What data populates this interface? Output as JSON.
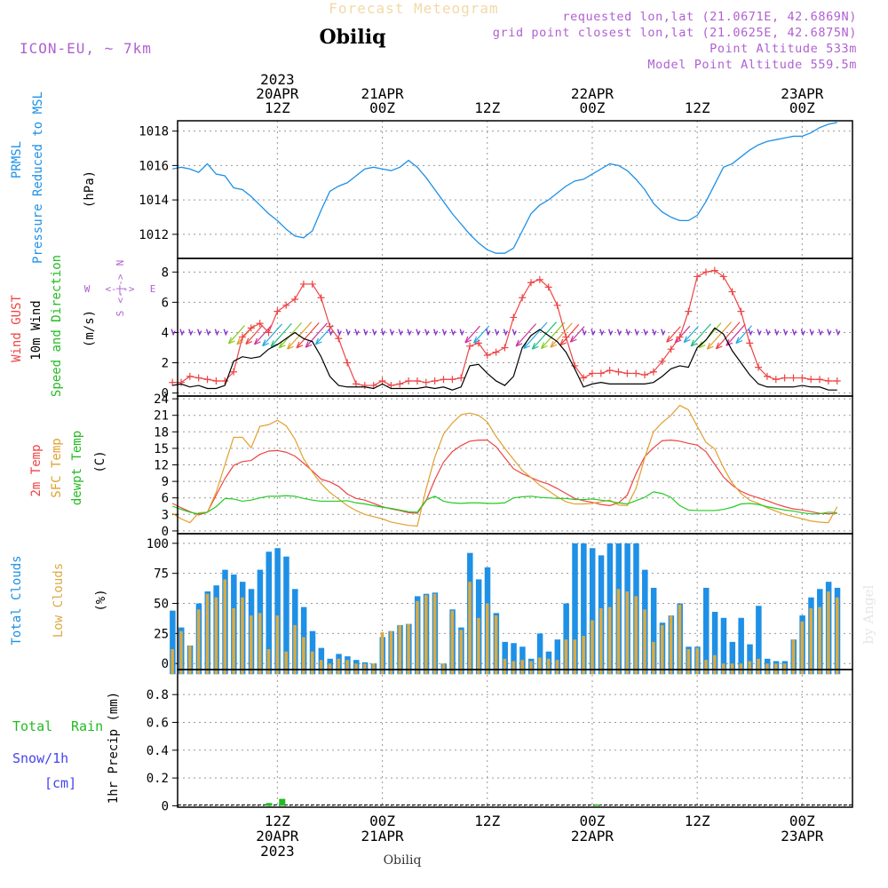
{
  "header": {
    "title": "Forecast Meteogram",
    "location": "Obiliq",
    "model": "ICON-EU, ~ 7km",
    "requested": "requested lon,lat (21.0671E, 42.6869N)",
    "gridpoint": "grid point closest lon,lat (21.0625E, 42.6875N)",
    "point_alt": "Point Altitude 533m",
    "model_alt": "Model Point Altitude 559.5m",
    "footer_location": "Obiliq",
    "watermark": "by Angel"
  },
  "colors": {
    "pressure": "#1e90e6",
    "gust": "#ee4444",
    "wind": "#000000",
    "temp2m": "#ee4444",
    "sfc": "#e0a030",
    "dewpt": "#22cc22",
    "total_clouds": "#1e90e6",
    "low_clouds": "#d9aa44",
    "rain": "#22bb22",
    "snow": "#4444ee",
    "purple": "#b060d0"
  },
  "time_axis": {
    "top_labels": [
      {
        "h": 12,
        "lines": [
          "2023",
          "20APR",
          "12Z"
        ]
      },
      {
        "h": 24,
        "lines": [
          "21APR",
          "00Z"
        ]
      },
      {
        "h": 36,
        "lines": [
          "12Z"
        ]
      },
      {
        "h": 48,
        "lines": [
          "22APR",
          "00Z"
        ]
      },
      {
        "h": 60,
        "lines": [
          "12Z"
        ]
      },
      {
        "h": 72,
        "lines": [
          "23APR",
          "00Z"
        ]
      }
    ],
    "bottom_labels": [
      {
        "h": 12,
        "lines": [
          "12Z",
          "20APR",
          "2023"
        ]
      },
      {
        "h": 24,
        "lines": [
          "00Z",
          "21APR"
        ]
      },
      {
        "h": 36,
        "lines": [
          "12Z"
        ]
      },
      {
        "h": 48,
        "lines": [
          "00Z",
          "22APR"
        ]
      },
      {
        "h": 60,
        "lines": [
          "12Z"
        ]
      },
      {
        "h": 72,
        "lines": [
          "00Z",
          "23APR"
        ]
      }
    ]
  },
  "panel_labels": {
    "pressure": [
      "PRMSL",
      "Pressure Reduced to MSL",
      "(hPa)"
    ],
    "wind": [
      "Wind GUST",
      "10m Wind",
      "Speed and Direction",
      "(m/s)"
    ],
    "compass": {
      "n": "N",
      "s": "S",
      "w": "W",
      "e": "E",
      "arrows": "<-|->"
    },
    "temp": [
      "2m Temp",
      "SFC Temp",
      "dewpt Temp",
      "(C)"
    ],
    "clouds": [
      "Total Clouds",
      "Low Clouds",
      "(%)"
    ],
    "precip": [
      "Total",
      "Rain",
      "Snow/1h",
      "[cm]",
      "1hr Precip (mm)"
    ]
  },
  "chart_data": [
    {
      "type": "line",
      "name": "pressure",
      "ylabel": "(hPa)",
      "ylim": [
        1010.6,
        1018.6
      ],
      "yticks": [
        1012,
        1014,
        1016,
        1018
      ],
      "x_hours": [
        0,
        1,
        2,
        3,
        4,
        5,
        6,
        7,
        8,
        9,
        10,
        11,
        12,
        13,
        14,
        15,
        16,
        17,
        18,
        19,
        20,
        21,
        22,
        23,
        24,
        25,
        26,
        27,
        28,
        29,
        30,
        31,
        32,
        33,
        34,
        35,
        36,
        37,
        38,
        39,
        40,
        41,
        42,
        43,
        44,
        45,
        46,
        47,
        48,
        49,
        50,
        51,
        52,
        53,
        54,
        55,
        56,
        57,
        58,
        59,
        60,
        61,
        62,
        63,
        64,
        65,
        66,
        67,
        68,
        69,
        70,
        71,
        72,
        73,
        74,
        75,
        76
      ],
      "series": [
        {
          "name": "PRMSL",
          "values": [
            1015.8,
            1015.9,
            1015.8,
            1015.6,
            1016.1,
            1015.5,
            1015.4,
            1014.7,
            1014.6,
            1014.2,
            1013.7,
            1013.2,
            1012.8,
            1012.3,
            1011.9,
            1011.8,
            1012.2,
            1013.4,
            1014.5,
            1014.8,
            1015.0,
            1015.4,
            1015.8,
            1015.9,
            1015.8,
            1015.7,
            1015.9,
            1016.3,
            1015.9,
            1015.3,
            1014.6,
            1013.9,
            1013.2,
            1012.6,
            1012.0,
            1011.5,
            1011.1,
            1010.9,
            1010.9,
            1011.2,
            1012.2,
            1013.2,
            1013.7,
            1014.0,
            1014.4,
            1014.8,
            1015.1,
            1015.2,
            1015.5,
            1015.8,
            1016.1,
            1016.0,
            1015.7,
            1015.2,
            1014.6,
            1013.8,
            1013.3,
            1013.0,
            1012.8,
            1012.8,
            1013.1,
            1013.9,
            1014.9,
            1015.9,
            1016.1,
            1016.5,
            1016.9,
            1017.2,
            1017.4,
            1017.5,
            1017.6,
            1017.7,
            1017.7,
            1017.9,
            1018.2,
            1018.4,
            1018.5
          ]
        }
      ]
    },
    {
      "type": "line",
      "name": "wind",
      "ylabel": "(m/s)",
      "ylim": [
        -0.2,
        8.9
      ],
      "yticks": [
        0,
        2,
        4,
        6,
        8
      ],
      "x_hours": [
        0,
        1,
        2,
        3,
        4,
        5,
        6,
        7,
        8,
        9,
        10,
        11,
        12,
        13,
        14,
        15,
        16,
        17,
        18,
        19,
        20,
        21,
        22,
        23,
        24,
        25,
        26,
        27,
        28,
        29,
        30,
        31,
        32,
        33,
        34,
        35,
        36,
        37,
        38,
        39,
        40,
        41,
        42,
        43,
        44,
        45,
        46,
        47,
        48,
        49,
        50,
        51,
        52,
        53,
        54,
        55,
        56,
        57,
        58,
        59,
        60,
        61,
        62,
        63,
        64,
        65,
        66,
        67,
        68,
        69,
        70,
        71,
        72,
        73,
        74,
        75,
        76
      ],
      "series": [
        {
          "name": "Wind GUST",
          "values": [
            0.7,
            0.7,
            1.1,
            1.0,
            0.9,
            0.8,
            0.8,
            1.4,
            3.7,
            4.3,
            4.6,
            4.0,
            5.4,
            5.8,
            6.2,
            7.2,
            7.2,
            6.3,
            4.4,
            3.6,
            2.0,
            0.6,
            0.5,
            0.5,
            0.8,
            0.5,
            0.6,
            0.8,
            0.8,
            0.7,
            0.8,
            0.9,
            0.9,
            1.0,
            3.1,
            3.3,
            2.5,
            2.7,
            3.0,
            5.0,
            6.3,
            7.3,
            7.5,
            7.0,
            5.8,
            3.7,
            1.8,
            1.0,
            1.3,
            1.3,
            1.5,
            1.4,
            1.3,
            1.3,
            1.2,
            1.4,
            2.1,
            2.9,
            3.7,
            5.4,
            7.7,
            8.0,
            8.1,
            7.7,
            6.7,
            5.4,
            3.3,
            1.7,
            1.1,
            0.9,
            1.0,
            1.0,
            1.0,
            0.9,
            0.9,
            0.8,
            0.8
          ]
        },
        {
          "name": "10m Wind",
          "values": [
            0.5,
            0.6,
            0.4,
            0.5,
            0.3,
            0.3,
            0.5,
            2.1,
            2.4,
            2.3,
            2.4,
            2.9,
            3.2,
            3.6,
            4.0,
            3.6,
            3.4,
            2.4,
            1.1,
            0.5,
            0.4,
            0.4,
            0.4,
            0.3,
            0.6,
            0.3,
            0.3,
            0.3,
            0.3,
            0.4,
            0.3,
            0.4,
            0.2,
            0.4,
            1.8,
            1.9,
            1.3,
            0.8,
            0.5,
            1.1,
            3.0,
            3.8,
            4.2,
            3.8,
            3.4,
            2.7,
            1.6,
            0.4,
            0.6,
            0.7,
            0.6,
            0.6,
            0.6,
            0.6,
            0.6,
            0.7,
            1.1,
            1.6,
            1.8,
            1.7,
            3.0,
            3.5,
            4.3,
            3.9,
            2.8,
            2.0,
            1.2,
            0.6,
            0.4,
            0.4,
            0.4,
            0.4,
            0.5,
            0.4,
            0.4,
            0.2,
            0.2
          ]
        }
      ]
    },
    {
      "type": "line",
      "name": "temperature",
      "ylabel": "(C)",
      "ylim": [
        -0.5,
        24.5
      ],
      "yticks": [
        0,
        3,
        6,
        9,
        12,
        15,
        18,
        21,
        24
      ],
      "x_hours": [
        0,
        1,
        2,
        3,
        4,
        5,
        6,
        7,
        8,
        9,
        10,
        11,
        12,
        13,
        14,
        15,
        16,
        17,
        18,
        19,
        20,
        21,
        22,
        23,
        24,
        25,
        26,
        27,
        28,
        29,
        30,
        31,
        32,
        33,
        34,
        35,
        36,
        37,
        38,
        39,
        40,
        41,
        42,
        43,
        44,
        45,
        46,
        47,
        48,
        49,
        50,
        51,
        52,
        53,
        54,
        55,
        56,
        57,
        58,
        59,
        60,
        61,
        62,
        63,
        64,
        65,
        66,
        67,
        68,
        69,
        70,
        71,
        72,
        73,
        74,
        75,
        76
      ],
      "series": [
        {
          "name": "2m Temp",
          "values": [
            5.0,
            4.2,
            3.5,
            2.9,
            3.4,
            6.5,
            9.5,
            11.9,
            12.6,
            12.8,
            13.9,
            14.5,
            14.6,
            14.3,
            13.6,
            12.3,
            10.9,
            9.4,
            8.9,
            8.1,
            6.7,
            5.9,
            5.6,
            5.0,
            4.4,
            4.0,
            3.7,
            3.3,
            3.2,
            5.5,
            9.3,
            12.5,
            14.4,
            15.5,
            16.3,
            16.5,
            16.5,
            15.3,
            13.3,
            11.3,
            10.4,
            9.7,
            9.0,
            8.5,
            7.7,
            6.8,
            5.9,
            5.5,
            5.2,
            4.8,
            4.6,
            5.1,
            6.5,
            10.4,
            13.5,
            15.1,
            16.4,
            16.5,
            16.3,
            15.9,
            15.6,
            14.4,
            12.1,
            9.8,
            8.3,
            7.2,
            6.5,
            6.0,
            5.5,
            4.9,
            4.4,
            4.0,
            3.8,
            3.5,
            3.2,
            3.1,
            3.2
          ]
        },
        {
          "name": "SFC Temp",
          "values": [
            3.2,
            2.2,
            1.5,
            3.3,
            3.4,
            7.0,
            12.0,
            17.0,
            17.0,
            15.1,
            19.0,
            19.3,
            20.1,
            19.1,
            16.7,
            13.1,
            10.7,
            8.6,
            7.0,
            5.8,
            4.6,
            3.7,
            3.0,
            2.6,
            2.2,
            1.6,
            1.3,
            1.0,
            0.9,
            7.6,
            13.4,
            17.6,
            19.6,
            21.1,
            21.4,
            21.0,
            19.8,
            17.2,
            15.0,
            13.0,
            11.0,
            9.7,
            8.3,
            7.3,
            6.2,
            5.3,
            4.9,
            4.9,
            5.0,
            5.3,
            5.6,
            4.7,
            4.6,
            7.7,
            13.3,
            18.0,
            19.7,
            21.0,
            22.8,
            22.0,
            19.0,
            16.1,
            14.9,
            11.5,
            8.7,
            6.8,
            5.6,
            5.0,
            4.2,
            3.6,
            3.0,
            2.6,
            2.2,
            1.8,
            1.6,
            1.5,
            4.4
          ]
        },
        {
          "name": "dewpt Temp",
          "values": [
            4.5,
            3.9,
            3.4,
            3.1,
            3.4,
            4.4,
            5.9,
            5.8,
            5.4,
            5.6,
            6.0,
            6.3,
            6.3,
            6.4,
            6.3,
            5.9,
            5.6,
            5.4,
            5.4,
            5.4,
            5.5,
            5.1,
            4.9,
            4.6,
            4.3,
            4.1,
            3.8,
            3.5,
            3.4,
            5.6,
            6.3,
            5.4,
            5.1,
            5.0,
            5.1,
            5.1,
            5.0,
            5.0,
            5.1,
            6.0,
            6.2,
            6.3,
            6.1,
            6.0,
            5.9,
            5.9,
            5.7,
            5.7,
            5.8,
            5.6,
            5.4,
            5.1,
            4.9,
            5.5,
            6.1,
            7.1,
            6.8,
            6.1,
            4.6,
            3.8,
            3.7,
            3.7,
            3.7,
            3.9,
            4.3,
            4.9,
            5.0,
            4.8,
            4.4,
            4.1,
            3.8,
            3.6,
            3.3,
            3.1,
            3.1,
            3.4,
            3.3
          ]
        }
      ]
    },
    {
      "type": "bar",
      "name": "clouds",
      "ylabel": "(%)",
      "ylim": [
        -5,
        108
      ],
      "yticks": [
        0,
        25,
        50,
        75,
        100
      ],
      "x_hours": [
        0,
        1,
        2,
        3,
        4,
        5,
        6,
        7,
        8,
        9,
        10,
        11,
        12,
        13,
        14,
        15,
        16,
        17,
        18,
        19,
        20,
        21,
        22,
        23,
        24,
        25,
        26,
        27,
        28,
        29,
        30,
        31,
        32,
        33,
        34,
        35,
        36,
        37,
        38,
        39,
        40,
        41,
        42,
        43,
        44,
        45,
        46,
        47,
        48,
        49,
        50,
        51,
        52,
        53,
        54,
        55,
        56,
        57,
        58,
        59,
        60,
        61,
        62,
        63,
        64,
        65,
        66,
        67,
        68,
        69,
        70,
        71,
        72,
        73,
        74,
        75,
        76
      ],
      "series": [
        {
          "name": "Total Clouds",
          "values": [
            44,
            30,
            15,
            50,
            60,
            65,
            78,
            74,
            68,
            62,
            78,
            93,
            96,
            89,
            62,
            47,
            27,
            13,
            4,
            8,
            6,
            3,
            1,
            0,
            22,
            27,
            32,
            33,
            56,
            58,
            59,
            0,
            45,
            30,
            92,
            70,
            80,
            42,
            18,
            17,
            14,
            4,
            25,
            10,
            20,
            50,
            100,
            100,
            96,
            90,
            100,
            100,
            100,
            100,
            78,
            63,
            34,
            40,
            50,
            14,
            14,
            63,
            43,
            38,
            18,
            38,
            16,
            48,
            4,
            2,
            2,
            20,
            40,
            55,
            62,
            68,
            63
          ]
        },
        {
          "name": "Low Clouds",
          "values": [
            12,
            27,
            15,
            45,
            58,
            55,
            70,
            46,
            55,
            40,
            42,
            12,
            40,
            10,
            32,
            22,
            10,
            3,
            0,
            4,
            3,
            0,
            0,
            0,
            26,
            27,
            32,
            33,
            52,
            57,
            58,
            0,
            44,
            28,
            68,
            38,
            50,
            40,
            4,
            2,
            3,
            2,
            5,
            4,
            3,
            20,
            20,
            23,
            36,
            46,
            47,
            62,
            60,
            56,
            45,
            18,
            32,
            40,
            49,
            12,
            13,
            3,
            7,
            0,
            0,
            0,
            2,
            4,
            0,
            0,
            0,
            20,
            35,
            46,
            47,
            60,
            55
          ]
        }
      ]
    },
    {
      "type": "bar",
      "name": "precipitation",
      "ylabel": "1hr Precip (mm)",
      "ylim": [
        -0.01,
        0.98
      ],
      "yticks": [
        0,
        0.2,
        0.4,
        0.6,
        0.8
      ],
      "series": [
        {
          "name": "Total Rain",
          "points": [
            {
              "h": 11,
              "v": 0.02
            },
            {
              "h": 12.5,
              "v": 0.05
            },
            {
              "h": 48.5,
              "v": 0.01
            }
          ]
        },
        {
          "name": "Snow/1h",
          "points": []
        }
      ]
    }
  ]
}
